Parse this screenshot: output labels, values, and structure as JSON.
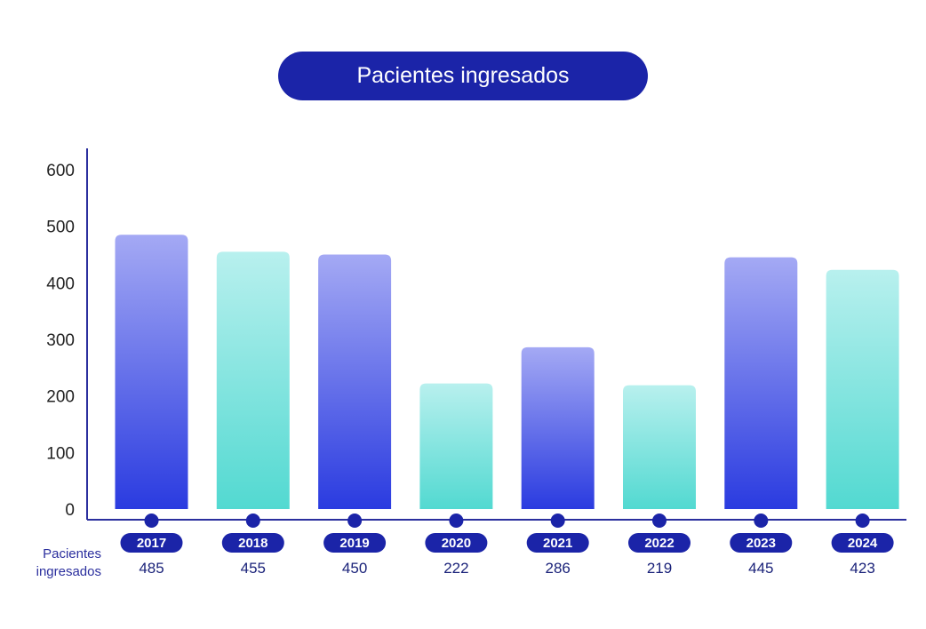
{
  "colors": {
    "primary": "#1b24a8",
    "bar_blue_top": "#a4a9f4",
    "bar_blue_bottom": "#2a3be0",
    "bar_teal_top": "#b8f0ee",
    "bar_teal_bottom": "#52d9d1",
    "axis": "#2b2f9e"
  },
  "chart_data": {
    "type": "bar",
    "title": "Pacientes ingresados",
    "categories": [
      "2017",
      "2018",
      "2019",
      "2020",
      "2021",
      "2022",
      "2023",
      "2024"
    ],
    "values": [
      485,
      455,
      450,
      222,
      286,
      219,
      445,
      423
    ],
    "ylim": [
      0,
      600
    ],
    "yticks": [
      "0",
      "100",
      "200",
      "300",
      "400",
      "500",
      "600"
    ],
    "row_label": [
      "Pacientes",
      "ingresados"
    ],
    "value_labels": [
      "485",
      "455",
      "450",
      "222",
      "286",
      "219",
      "445",
      "423"
    ],
    "bar_colors": [
      "blue",
      "teal",
      "blue",
      "teal",
      "blue",
      "teal",
      "blue",
      "teal"
    ],
    "grid": false,
    "legend": "none"
  }
}
